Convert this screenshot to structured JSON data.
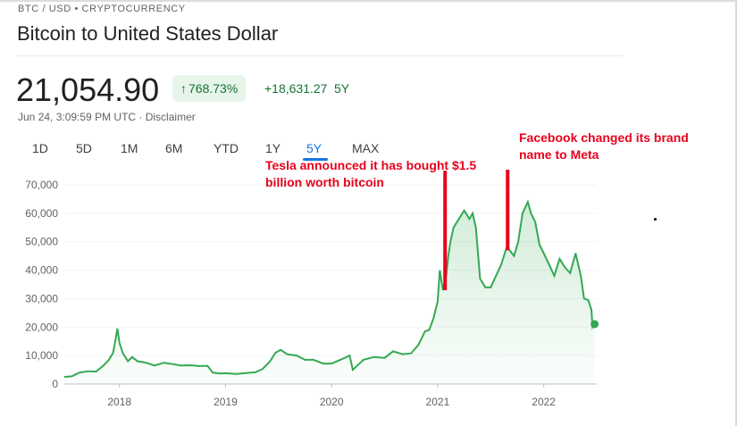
{
  "header": {
    "breadcrumb": "BTC / USD • CRYPTOCURRENCY",
    "title": "Bitcoin to United States Dollar"
  },
  "quote": {
    "price": "21,054.90",
    "change_pct": "768.73%",
    "change_abs": "+18,631.27",
    "period": "5Y",
    "timestamp": "Jun 24, 3:09:59 PM UTC · Disclaimer"
  },
  "tabs": [
    "1D",
    "5D",
    "1M",
    "6M",
    "YTD",
    "1Y",
    "5Y",
    "MAX"
  ],
  "active_tab": "5Y",
  "colors": {
    "line": "#34a853",
    "positive_text": "#137333",
    "positive_bg": "#e6f4ea",
    "annotation": "#e8001c",
    "accent": "#1a73e8"
  },
  "annotations": {
    "tesla": [
      "Tesla announced it has bought $1.5",
      "billion worth bitcoin"
    ],
    "facebook": [
      "Facebook changed its brand",
      "name to Meta"
    ]
  },
  "chart_data": {
    "type": "area",
    "ylim": [
      0,
      70000
    ],
    "y_ticks": [
      "70,000",
      "60,000",
      "50,000",
      "40,000",
      "30,000",
      "20,000",
      "10,000",
      "0"
    ],
    "x_ticks": [
      "2018",
      "2019",
      "2020",
      "2021",
      "2022"
    ],
    "series": [
      {
        "x": [
          2017.48,
          2017.55,
          2017.62,
          2017.7,
          2017.78,
          2017.85,
          2017.9,
          2017.94,
          2017.96,
          2017.98,
          2018.0,
          2018.03,
          2018.08,
          2018.12,
          2018.17,
          2018.25,
          2018.33,
          2018.42,
          2018.5,
          2018.58,
          2018.67,
          2018.75,
          2018.83,
          2018.88,
          2018.92,
          2018.96,
          2019.0,
          2019.1,
          2019.2,
          2019.28,
          2019.35,
          2019.42,
          2019.47,
          2019.52,
          2019.58,
          2019.67,
          2019.75,
          2019.83,
          2019.92,
          2020.0,
          2020.1,
          2020.17,
          2020.2,
          2020.3,
          2020.4,
          2020.5,
          2020.58,
          2020.67,
          2020.75,
          2020.82,
          2020.88,
          2020.92,
          2020.96,
          2021.0,
          2021.02,
          2021.05,
          2021.08,
          2021.1,
          2021.12,
          2021.15,
          2021.2,
          2021.25,
          2021.3,
          2021.33,
          2021.36,
          2021.4,
          2021.45,
          2021.5,
          2021.55,
          2021.6,
          2021.65,
          2021.68,
          2021.72,
          2021.76,
          2021.8,
          2021.85,
          2021.88,
          2021.92,
          2021.96,
          2022.0,
          2022.05,
          2022.1,
          2022.15,
          2022.2,
          2022.25,
          2022.3,
          2022.35,
          2022.38,
          2022.42,
          2022.45,
          2022.46,
          2022.48
        ],
        "y": [
          2500,
          2700,
          4000,
          4500,
          4400,
          6500,
          8500,
          11000,
          15000,
          19500,
          14500,
          11000,
          8000,
          9500,
          8000,
          7500,
          6500,
          7500,
          7000,
          6500,
          6600,
          6300,
          6400,
          4000,
          3800,
          3700,
          3800,
          3500,
          3900,
          4100,
          5300,
          8000,
          11000,
          12000,
          10500,
          10000,
          8500,
          8500,
          7200,
          7200,
          8800,
          10000,
          5000,
          8500,
          9500,
          9200,
          11500,
          10500,
          10800,
          13800,
          18500,
          19000,
          23000,
          29000,
          40000,
          33000,
          38000,
          45000,
          50000,
          55000,
          58000,
          61000,
          58000,
          60000,
          55000,
          37000,
          34000,
          34000,
          38000,
          42000,
          48000,
          47000,
          45000,
          50000,
          60000,
          64000,
          60000,
          57000,
          49000,
          46000,
          42000,
          38000,
          44000,
          41000,
          39000,
          46000,
          38000,
          30000,
          29500,
          26000,
          20000,
          21054.9
        ]
      }
    ]
  }
}
